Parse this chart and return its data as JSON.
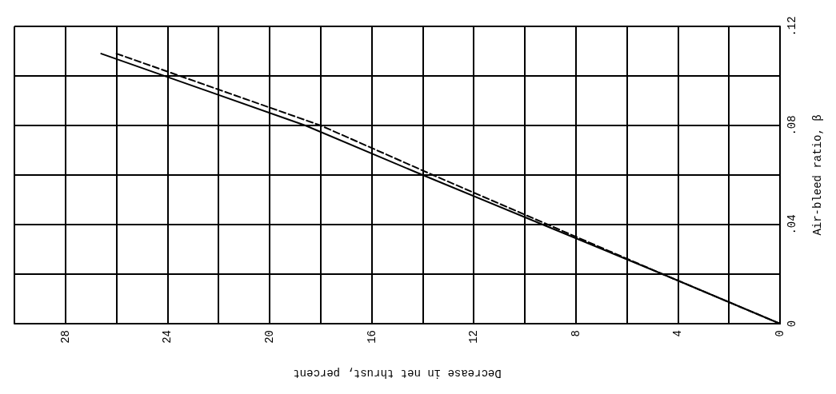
{
  "chart_data": {
    "type": "line",
    "xlabel": "Decrease in net thrust, percent",
    "ylabel": "Air-bleed ratio, β",
    "series": [
      {
        "color": "#000000",
        "line_style": "solid",
        "x": [
          0,
          4.6,
          9.3,
          14,
          18.6,
          26.6
        ],
        "values": [
          0,
          0.02,
          0.04,
          0.06,
          0.08,
          0.109
        ]
      },
      {
        "color": "#000000",
        "line_style": "dashed",
        "x": [
          0,
          4.6,
          9.1,
          13.6,
          18.0,
          26.0
        ],
        "values": [
          0,
          0.02,
          0.04,
          0.06,
          0.08,
          0.109
        ]
      }
    ],
    "xlim": [
      30,
      0
    ],
    "xticks": [
      0,
      {
        "value": 2,
        "label": null
      },
      4,
      {
        "value": 6,
        "label": null
      },
      8,
      {
        "value": 10,
        "label": null
      },
      12,
      {
        "value": 14,
        "label": null
      },
      16,
      {
        "value": 18,
        "label": null
      },
      20,
      {
        "value": 22,
        "label": null
      },
      24,
      {
        "value": 26,
        "label": null
      },
      28,
      {
        "value": 30,
        "label": null
      }
    ],
    "ylim": [
      0,
      0.12
    ],
    "yticks": [
      0,
      {
        "value": 0.02,
        "label": null
      },
      {
        "value": 0.04,
        "label": ".04"
      },
      {
        "value": 0.06,
        "label": null
      },
      {
        "value": 0.08,
        "label": ".08"
      },
      {
        "value": 0.1,
        "label": null
      },
      {
        "value": 0.12,
        "label": ".12"
      }
    ],
    "grid": true,
    "marker": "none"
  }
}
